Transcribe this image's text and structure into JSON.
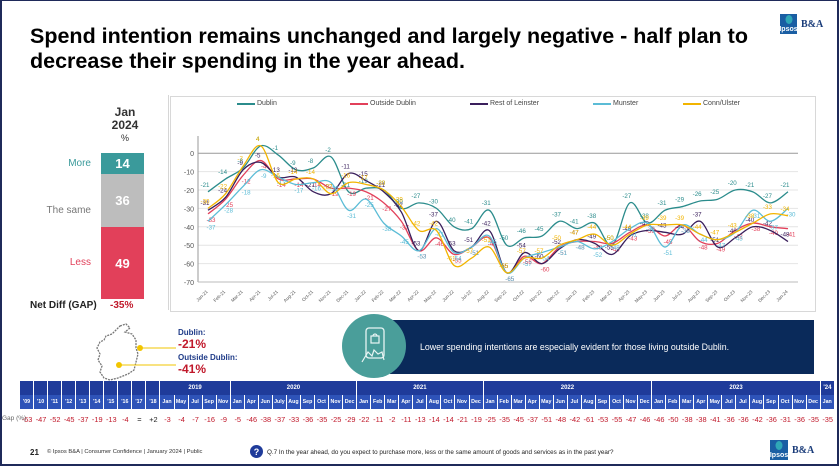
{
  "slide": {
    "title": "Spend intention remains unchanged and largely negative - half plan to decrease their spending in the year ahead.",
    "page_number": "21",
    "footer": "© Ipsos B&A | Consumer Confidence | January 2024 | Public",
    "question": "Q.7 In the year ahead, do you expect to purchase more, less or the same amount of goods and services as in the past year?",
    "logo": {
      "mark": "Ipsos",
      "text": "B&A"
    }
  },
  "snapshot": {
    "period_line1": "Jan",
    "period_line2": "2024",
    "unit": "%",
    "segments": [
      {
        "label": "More",
        "value": 14,
        "color": "#3a9a9b"
      },
      {
        "label": "The same",
        "value": 36,
        "color": "#bdbdbd"
      },
      {
        "label": "Less",
        "value": 49,
        "color": "#e2405a"
      }
    ],
    "net_diff_label": "Net Diff (GAP)",
    "net_diff_value": "-35%"
  },
  "map": {
    "dublin_label": "Dublin:",
    "dublin_value": "-21%",
    "outside_label": "Outside Dublin:",
    "outside_value": "-41%"
  },
  "callout": {
    "text": "Lower spending intentions are especially evident for those living outside Dublin.",
    "icon": "phone-shopping-icon"
  },
  "chart_data": {
    "type": "line",
    "title": "",
    "xlabel": "",
    "ylabel": "",
    "ylim": [
      -70,
      5
    ],
    "yticks": [
      0,
      -10,
      -20,
      -30,
      -40,
      -50,
      -60,
      -70
    ],
    "grid": true,
    "legend_position": "top",
    "x": [
      "Jan-21",
      "Feb-21",
      "Mar-21",
      "Apr-21",
      "Jul-21",
      "Aug-21",
      "Oct-21",
      "Nov-21",
      "Dec-21",
      "Jan-22",
      "Feb-22",
      "Mar-22",
      "Apr-22",
      "May-22",
      "Jun-22",
      "Jul-22",
      "Aug-22",
      "Sep-22",
      "Oct-22",
      "Nov-22",
      "Dec-22",
      "Jan-23",
      "Feb-23",
      "Mar-23",
      "Apr-23",
      "May-23",
      "Jun-23",
      "Jul-23",
      "Aug-23",
      "Sep-23",
      "Oct-23",
      "Nov-23",
      "Dec-23",
      "Jan-24"
    ],
    "series": [
      {
        "name": "Dublin",
        "color": "#2b8c8c",
        "values": [
          -21,
          -14,
          -8,
          4,
          -1,
          -9,
          -8,
          -2,
          -21,
          -19,
          -20,
          -30,
          -27,
          -30,
          -40,
          -41,
          -31,
          -50,
          -46,
          -45,
          -37,
          -41,
          -38,
          -50,
          -27,
          -38,
          -31,
          -29,
          -26,
          -25,
          -20,
          -21,
          -27,
          -21
        ]
      },
      {
        "name": "Outside Dublin",
        "color": "#e2405a",
        "values": [
          -33,
          -25,
          -12,
          -4,
          -14,
          -14,
          -14,
          -19,
          -19,
          -21,
          -27,
          -37,
          -53,
          -46,
          -55,
          -51,
          -46,
          -65,
          -56,
          -60,
          -51,
          -48,
          -48,
          -49,
          -43,
          -39,
          -45,
          -39,
          -48,
          -49,
          -42,
          -38,
          -40,
          -41
        ]
      },
      {
        "name": "Rest of Leinster",
        "color": "#3a1f5c",
        "values": [
          -31,
          -24,
          -9,
          -5,
          -13,
          -13,
          -21,
          -22,
          -11,
          -15,
          -21,
          -32,
          -53,
          -37,
          -53,
          -51,
          -42,
          -65,
          -54,
          -60,
          -52,
          -47,
          -49,
          -55,
          -45,
          -42,
          -43,
          -44,
          -37,
          -51,
          -46,
          -40,
          -42,
          -48
        ]
      },
      {
        "name": "Munster",
        "color": "#5bbcd6",
        "values": [
          -37,
          -28,
          -18,
          -9,
          -13,
          -17,
          -16,
          -16,
          -31,
          -25,
          -38,
          -45,
          -53,
          -41,
          -54,
          -51,
          -45,
          -65,
          -57,
          -54,
          -51,
          -48,
          -52,
          -48,
          -41,
          -38,
          -51,
          -39,
          -44,
          -47,
          -43,
          -31,
          -37,
          -30
        ]
      },
      {
        "name": "Conn/Ulster",
        "color": "#f2b400",
        "values": [
          -30,
          -22,
          -7,
          4,
          -16,
          -14,
          -14,
          -22,
          -16,
          -17,
          -20,
          -29,
          -42,
          -42,
          -61,
          -57,
          -51,
          -65,
          -57,
          -57,
          -50,
          -47,
          -44,
          -50,
          -44,
          -39,
          -39,
          -39,
          -44,
          -47,
          -43,
          -38,
          -33,
          -34
        ]
      }
    ],
    "data_labels_shown": true
  },
  "gap_table": {
    "row_label": "Gap (%)",
    "groups": [
      {
        "label": "",
        "span": 10
      },
      {
        "label": "2019",
        "span": 5
      },
      {
        "label": "2020",
        "span": 9
      },
      {
        "label": "2021",
        "span": 9
      },
      {
        "label": "2022",
        "span": 12
      },
      {
        "label": "2023",
        "span": 12
      },
      {
        "label": "'24",
        "span": 1
      }
    ],
    "columns": [
      "'09",
      "'10",
      "'11",
      "'12",
      "'13",
      "'14",
      "'15",
      "'16",
      "'17",
      "'18",
      "Jan",
      "May",
      "Jul",
      "Sep",
      "Nov",
      "Jan",
      "Apr",
      "Jun",
      "July",
      "Aug",
      "Sep",
      "Oct",
      "Nov",
      "Dec",
      "Jan",
      "Feb",
      "Mar",
      "Apr",
      "Jul",
      "Aug",
      "Oct",
      "Nov",
      "Dec",
      "Jan",
      "Feb",
      "Mar",
      "Apr",
      "May",
      "Jun",
      "Jul",
      "Aug",
      "Sep",
      "Oct",
      "Nov",
      "Dec",
      "Jan",
      "Feb",
      "Mar",
      "Apr",
      "May",
      "Jul",
      "Jul",
      "Aug",
      "Sep",
      "Oct",
      "Nov",
      "Dec",
      "Jan"
    ],
    "values": [
      "-63",
      "-47",
      "-52",
      "-45",
      "-37",
      "-19",
      "-13",
      "-4",
      "=",
      "+2",
      "-3",
      "-4",
      "-7",
      "-16",
      "-9",
      "-5",
      "-46",
      "-38",
      "-37",
      "-33",
      "-36",
      "-35",
      "-25",
      "-29",
      "-22",
      "-11",
      "-2",
      "-11",
      "-13",
      "-14",
      "-14",
      "-21",
      "-19",
      "-25",
      "-35",
      "-45",
      "-37",
      "-51",
      "-48",
      "-42",
      "-61",
      "-53",
      "-55",
      "-47",
      "-46",
      "-46",
      "-50",
      "-38",
      "-38",
      "-41",
      "-36",
      "-36",
      "-42",
      "-36",
      "-31",
      "-36",
      "-35",
      "-35"
    ]
  }
}
